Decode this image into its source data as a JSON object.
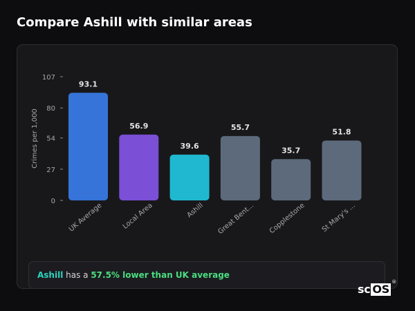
{
  "header": {
    "title": "Compare Ashill with similar areas"
  },
  "chart_data": {
    "type": "bar",
    "title": "",
    "xlabel": "",
    "ylabel": "Crimes per 1,000",
    "ylim": [
      0,
      107
    ],
    "yticks": [
      0,
      27,
      54,
      80,
      107
    ],
    "categories": [
      "UK Average",
      "Local Area",
      "Ashill",
      "Great Bent...",
      "Copplestone",
      "St Mary's ..."
    ],
    "values": [
      93.1,
      56.9,
      39.6,
      55.7,
      35.7,
      51.8
    ],
    "value_labels": [
      "93.1",
      "56.9",
      "39.6",
      "55.7",
      "35.7",
      "51.8"
    ],
    "colors": [
      "#3674d9",
      "#7b4fd6",
      "#1fb8d0",
      "#5d6a7c",
      "#5d6a7c",
      "#5d6a7c"
    ],
    "grid": false,
    "legend": "none"
  },
  "summary": {
    "area": "Ashill",
    "middle": " has a ",
    "stat": "57.5% lower than UK average"
  },
  "logo": {
    "prefix": "sc",
    "boxed": "OS",
    "mark": "®"
  },
  "colors": {
    "background": "#0d0d0f",
    "card": "#18181b",
    "area_highlight": "#2dd4bf",
    "stat_highlight": "#4ade80"
  }
}
